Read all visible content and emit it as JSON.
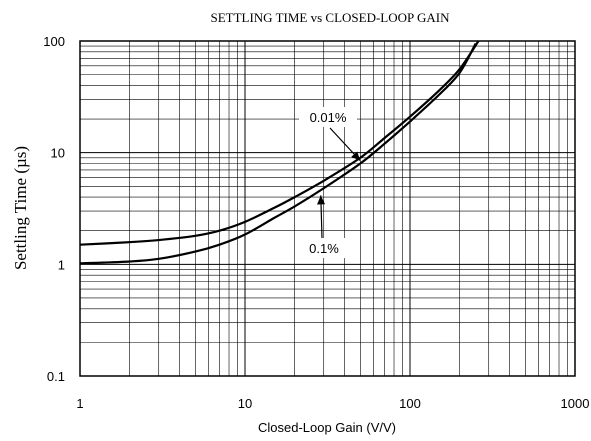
{
  "chart_data": {
    "type": "line",
    "title": "SETTLING TIME vs CLOSED-LOOP GAIN",
    "xlabel": "Closed-Loop Gain (V/V)",
    "ylabel": "Settling Time (µs)",
    "xscale": "log",
    "yscale": "log",
    "xlim": [
      1,
      1000
    ],
    "ylim": [
      0.1,
      100
    ],
    "x_ticks": [
      "1",
      "10",
      "100",
      "1000"
    ],
    "y_ticks": [
      "0.1",
      "1",
      "10",
      "100"
    ],
    "grid": true,
    "series": [
      {
        "name": "0.01%",
        "x": [
          1,
          2,
          3,
          5,
          7,
          10,
          15,
          20,
          30,
          50,
          70,
          100,
          150,
          200,
          260
        ],
        "y": [
          1.5,
          1.58,
          1.65,
          1.8,
          2.0,
          2.4,
          3.2,
          4.0,
          5.6,
          9.0,
          13.5,
          21,
          36,
          56,
          100
        ]
      },
      {
        "name": "0.1%",
        "x": [
          1,
          2,
          3,
          5,
          7,
          10,
          15,
          20,
          30,
          50,
          70,
          100,
          150,
          200,
          250
        ],
        "y": [
          1.02,
          1.06,
          1.12,
          1.3,
          1.5,
          1.85,
          2.6,
          3.3,
          4.8,
          8.0,
          12,
          19,
          33,
          52,
          95
        ]
      }
    ],
    "annotations": [
      {
        "label": "0.01%",
        "series": "0.01%"
      },
      {
        "label": "0.1%",
        "series": "0.1%"
      }
    ]
  }
}
